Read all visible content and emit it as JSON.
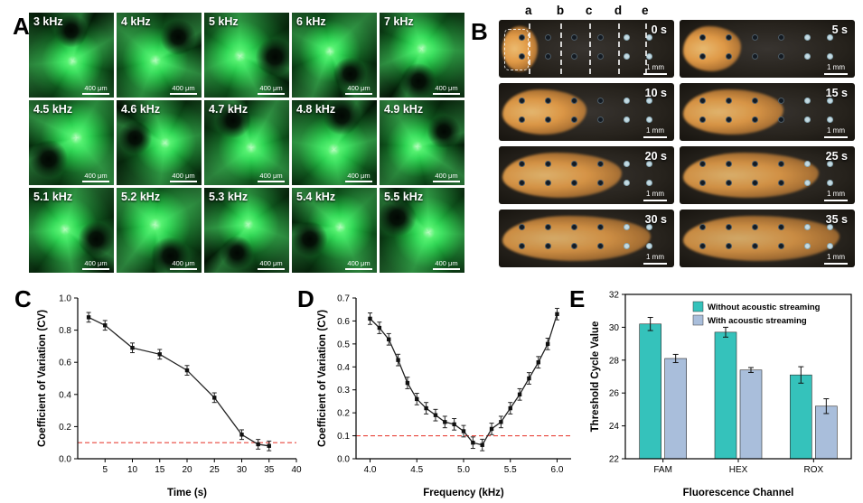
{
  "panels": {
    "A": {
      "label": "A",
      "scale_bar": "400 μm",
      "tiles": [
        "3 kHz",
        "4 kHz",
        "5 kHz",
        "6 kHz",
        "7 kHz",
        "4.5 kHz",
        "4.6 kHz",
        "4.7 kHz",
        "4.8 kHz",
        "4.9 kHz",
        "5.1 kHz",
        "5.2 kHz",
        "5.3 kHz",
        "5.4 kHz",
        "5.5 kHz"
      ]
    },
    "B": {
      "label": "B",
      "scale_bar": "1 mm",
      "column_labels": [
        "a",
        "b",
        "c",
        "d",
        "e"
      ],
      "tiles": [
        "0 s",
        "5 s",
        "10 s",
        "15 s",
        "20 s",
        "25 s",
        "30 s",
        "35 s"
      ]
    },
    "C": {
      "label": "C"
    },
    "D": {
      "label": "D"
    },
    "E": {
      "label": "E"
    }
  },
  "chart_data": [
    {
      "id": "C",
      "type": "line",
      "title": "",
      "xlabel": "Time (s)",
      "ylabel": "Coefficient of Variation (CV)",
      "x": [
        2,
        5,
        10,
        15,
        20,
        25,
        30,
        33,
        35
      ],
      "y": [
        0.88,
        0.83,
        0.69,
        0.65,
        0.55,
        0.38,
        0.15,
        0.09,
        0.08
      ],
      "error": 0.03,
      "xlim": [
        0,
        40
      ],
      "ylim": [
        0,
        1.0
      ],
      "xticks": [
        5,
        10,
        15,
        20,
        25,
        30,
        35,
        40
      ],
      "xtick_labels": [
        "5",
        "10",
        "15",
        "20",
        "25",
        "30",
        "35",
        "40"
      ],
      "yticks": [
        0,
        0.2,
        0.4,
        0.6,
        0.8,
        1.0
      ],
      "ytick_labels": [
        "0.0",
        "0.2",
        "0.4",
        "0.6",
        "0.8",
        "1.0"
      ],
      "ref_line": 0.1,
      "ref_color": "#e8453c",
      "grid": false,
      "marker": "square"
    },
    {
      "id": "D",
      "type": "line",
      "title": "",
      "xlabel": "Frequency (kHz)",
      "ylabel": "Coefficient of Variation (CV)",
      "x": [
        4.0,
        4.1,
        4.2,
        4.3,
        4.4,
        4.5,
        4.6,
        4.7,
        4.8,
        4.9,
        5.0,
        5.1,
        5.2,
        5.3,
        5.4,
        5.5,
        5.6,
        5.7,
        5.8,
        5.9,
        6.0
      ],
      "y": [
        0.61,
        0.57,
        0.52,
        0.43,
        0.33,
        0.26,
        0.22,
        0.19,
        0.16,
        0.15,
        0.12,
        0.07,
        0.06,
        0.13,
        0.16,
        0.22,
        0.28,
        0.35,
        0.42,
        0.5,
        0.63
      ],
      "error": 0.025,
      "xlim": [
        3.85,
        6.15
      ],
      "ylim": [
        0,
        0.7
      ],
      "xticks": [
        4.0,
        4.5,
        5.0,
        5.5,
        6.0
      ],
      "xtick_labels": [
        "4.0",
        "4.5",
        "5.0",
        "5.5",
        "6.0"
      ],
      "yticks": [
        0,
        0.1,
        0.2,
        0.3,
        0.4,
        0.5,
        0.6,
        0.7
      ],
      "ytick_labels": [
        "0.0",
        "0.1",
        "0.2",
        "0.3",
        "0.4",
        "0.5",
        "0.6",
        "0.7"
      ],
      "ref_line": 0.1,
      "ref_color": "#e8453c",
      "grid": false,
      "marker": "square"
    },
    {
      "id": "E",
      "type": "bar",
      "title": "",
      "xlabel": "Fluorescence Channel",
      "ylabel": "Threshold Cycle Value",
      "categories": [
        "FAM",
        "HEX",
        "ROX"
      ],
      "series": [
        {
          "name": "Without acoustic streaming",
          "color": "#35c2bb",
          "values": [
            30.2,
            29.7,
            27.1
          ],
          "errors": [
            0.4,
            0.3,
            0.5
          ]
        },
        {
          "name": "With acoustic streaming",
          "color": "#a9bedb",
          "values": [
            28.1,
            27.4,
            25.2
          ],
          "errors": [
            0.25,
            0.15,
            0.45
          ]
        }
      ],
      "ylim": [
        22,
        32
      ],
      "yticks": [
        22,
        24,
        26,
        28,
        30,
        32
      ],
      "ytick_labels": [
        "22",
        "24",
        "26",
        "28",
        "30",
        "32"
      ],
      "grid": false,
      "legend_position": "top-inside"
    }
  ]
}
